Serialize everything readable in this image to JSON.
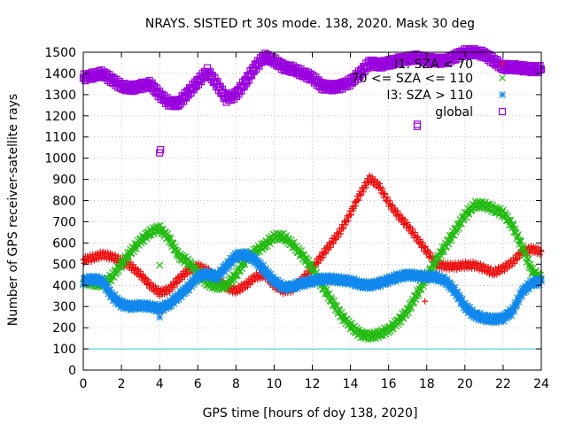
{
  "chart_data": {
    "type": "scatter",
    "title": "NRAYS. SISTED rt 30s mode. 138, 2020. Mask 30 deg",
    "xlabel": "GPS time [hours of doy 138, 2020]",
    "ylabel": "Number of GPS receiver-satellite rays",
    "xlim": [
      0,
      24
    ],
    "ylim": [
      0,
      1500
    ],
    "xticks": [
      "0",
      "2",
      "4",
      "6",
      "8",
      "10",
      "12",
      "14",
      "16",
      "18",
      "20",
      "22",
      "24"
    ],
    "yticks": [
      "0",
      "100",
      "200",
      "300",
      "400",
      "500",
      "600",
      "700",
      "800",
      "900",
      "1000",
      "1100",
      "1200",
      "1300",
      "1400",
      "1500"
    ],
    "grid": true,
    "legend_position": "top-right",
    "reference_line": {
      "y": 100,
      "color": "#33cccc"
    },
    "series": [
      {
        "name": "I1: SZA < 70",
        "color": "#ee1111",
        "marker": "plus",
        "x": [
          0,
          0.5,
          1,
          1.5,
          2,
          2.5,
          3,
          3.5,
          4,
          4.5,
          5,
          5.5,
          6,
          6.5,
          7,
          7.5,
          8,
          8.5,
          9,
          9.5,
          10,
          10.5,
          11,
          11.5,
          12,
          12.5,
          13,
          13.5,
          14,
          14.5,
          15,
          15.5,
          16,
          16.5,
          17,
          17.5,
          18,
          18.5,
          19,
          19.5,
          20,
          20.5,
          21,
          21.5,
          22,
          22.5,
          23,
          23.5,
          24
        ],
        "y": [
          520,
          530,
          545,
          535,
          515,
          490,
          450,
          400,
          365,
          380,
          430,
          470,
          490,
          470,
          430,
          390,
          375,
          400,
          440,
          450,
          400,
          375,
          385,
          430,
          480,
          540,
          600,
          660,
          740,
          830,
          905,
          870,
          790,
          730,
          680,
          620,
          560,
          500,
          490,
          490,
          495,
          495,
          480,
          460,
          480,
          510,
          560,
          570,
          560
        ],
        "outliers": [
          {
            "x": 4.0,
            "y": 270
          },
          {
            "x": 17.9,
            "y": 325
          }
        ]
      },
      {
        "name": "70 <= SZA <= 110",
        "color": "#22bb11",
        "marker": "cross",
        "x": [
          0,
          0.5,
          1,
          1.5,
          2,
          2.5,
          3,
          3.5,
          4,
          4.5,
          5,
          5.5,
          6,
          6.5,
          7,
          7.5,
          8,
          8.5,
          9,
          9.5,
          10,
          10.5,
          11,
          11.5,
          12,
          12.5,
          13,
          13.5,
          14,
          14.5,
          15,
          15.5,
          16,
          16.5,
          17,
          17.5,
          18,
          18.5,
          19,
          19.5,
          20,
          20.5,
          21,
          21.5,
          22,
          22.5,
          23,
          23.5,
          24
        ],
        "y": [
          420,
          410,
          405,
          440,
          500,
          560,
          610,
          650,
          670,
          620,
          540,
          510,
          460,
          410,
          395,
          400,
          450,
          520,
          560,
          590,
          630,
          630,
          590,
          540,
          480,
          400,
          330,
          260,
          210,
          170,
          160,
          170,
          190,
          230,
          280,
          360,
          440,
          520,
          590,
          660,
          730,
          780,
          780,
          760,
          740,
          680,
          580,
          470,
          430
        ],
        "outliers": [
          {
            "x": 4.0,
            "y": 495
          }
        ]
      },
      {
        "name": "I3: SZA > 110",
        "color": "#1188ee",
        "marker": "star",
        "x": [
          0,
          0.5,
          1,
          1.5,
          2,
          2.5,
          3,
          3.5,
          4,
          4.5,
          5,
          5.5,
          6,
          6.5,
          7,
          7.5,
          8,
          8.5,
          9,
          9.5,
          10,
          10.5,
          11,
          11.5,
          12,
          12.5,
          13,
          13.5,
          14,
          14.5,
          15,
          15.5,
          16,
          16.5,
          17,
          17.5,
          18,
          18.5,
          19,
          19.5,
          20,
          20.5,
          21,
          21.5,
          22,
          22.5,
          23,
          23.5,
          24
        ],
        "y": [
          420,
          430,
          420,
          350,
          310,
          300,
          305,
          300,
          290,
          310,
          350,
          390,
          440,
          455,
          440,
          490,
          540,
          545,
          520,
          470,
          420,
          390,
          395,
          410,
          420,
          430,
          430,
          425,
          420,
          405,
          400,
          410,
          425,
          440,
          450,
          445,
          440,
          440,
          420,
          370,
          300,
          260,
          245,
          240,
          245,
          280,
          370,
          410,
          420
        ],
        "outliers": [
          {
            "x": 4.0,
            "y": 250
          }
        ]
      },
      {
        "name": "global",
        "color": "#9900dd",
        "marker": "square",
        "x": [
          0,
          0.5,
          1,
          1.5,
          2,
          2.5,
          3,
          3.5,
          4,
          4.5,
          5,
          5.5,
          6,
          6.5,
          7,
          7.5,
          8,
          8.5,
          9,
          9.5,
          10,
          10.5,
          11,
          11.5,
          12,
          12.5,
          13,
          13.5,
          14,
          14.5,
          15,
          15.5,
          16,
          16.5,
          17,
          17.5,
          18,
          18.5,
          19,
          19.5,
          20,
          20.5,
          21,
          21.5,
          22,
          22.5,
          23,
          23.5,
          24
        ],
        "y": [
          1380,
          1390,
          1400,
          1370,
          1340,
          1330,
          1340,
          1350,
          1300,
          1260,
          1260,
          1310,
          1360,
          1410,
          1350,
          1280,
          1300,
          1360,
          1430,
          1480,
          1460,
          1430,
          1420,
          1400,
          1380,
          1340,
          1335,
          1340,
          1360,
          1400,
          1450,
          1440,
          1450,
          1460,
          1470,
          1475,
          1465,
          1460,
          1460,
          1480,
          1500,
          1500,
          1490,
          1460,
          1430,
          1430,
          1425,
          1420,
          1420
        ],
        "outliers": [
          {
            "x": 4.0,
            "y": 1025
          },
          {
            "x": 4.05,
            "y": 1040
          },
          {
            "x": 17.5,
            "y": 1150
          },
          {
            "x": 17.5,
            "y": 1160
          }
        ]
      }
    ]
  }
}
